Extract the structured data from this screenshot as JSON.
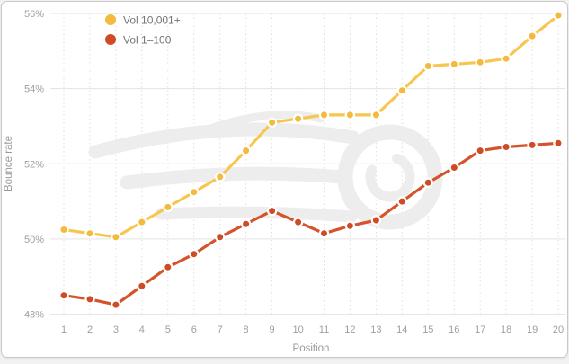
{
  "card": {
    "page_background": "#f2f2f2",
    "background": "#ffffff",
    "border_color": "#c9c9c9"
  },
  "styles": {
    "hgrid_color": "#e3e3e3",
    "vgrid_color": "#dedede",
    "tick_color": "#9e9e9e",
    "axis_title_color": "#9a9a9a",
    "legend_text_color": "#757575",
    "watermark_color": "#ededed",
    "dot_halo_color": "#ffffff"
  },
  "chart_data": {
    "type": "line",
    "title": "",
    "xlabel": "Position",
    "ylabel": "Bounce rate",
    "x": [
      1,
      2,
      3,
      4,
      5,
      6,
      7,
      8,
      9,
      10,
      11,
      12,
      13,
      14,
      15,
      16,
      17,
      18,
      19,
      20
    ],
    "x_tick_labels": [
      "1",
      "2",
      "3",
      "4",
      "5",
      "6",
      "7",
      "8",
      "9",
      "10",
      "11",
      "12",
      "13",
      "14",
      "15",
      "16",
      "17",
      "18",
      "19",
      "20"
    ],
    "yticks": {
      "values": [
        48,
        50,
        52,
        54,
        56
      ],
      "labels": [
        "48%",
        "50%",
        "52%",
        "54%",
        "56%"
      ]
    },
    "ylim": [
      48,
      56
    ],
    "xlim": [
      1,
      20
    ],
    "grid": true,
    "legend_position": "top-left",
    "watermark": "semrush-logo",
    "series": [
      {
        "name": "Vol 10,001+",
        "color": "#F3BA3E",
        "line_color": "#F7C64F",
        "values": [
          50.25,
          50.15,
          50.05,
          50.45,
          50.85,
          51.25,
          51.65,
          52.35,
          53.1,
          53.2,
          53.3,
          53.3,
          53.3,
          53.95,
          54.6,
          54.65,
          54.7,
          54.8,
          55.4,
          55.95
        ]
      },
      {
        "name": "Vol 1–100",
        "color": "#CF4B26",
        "line_color": "#D5532B",
        "values": [
          48.5,
          48.4,
          48.25,
          48.75,
          49.25,
          49.6,
          50.05,
          50.4,
          50.75,
          50.45,
          50.15,
          50.35,
          50.5,
          51.0,
          51.5,
          51.9,
          52.35,
          52.45,
          52.5,
          52.55
        ]
      }
    ]
  }
}
